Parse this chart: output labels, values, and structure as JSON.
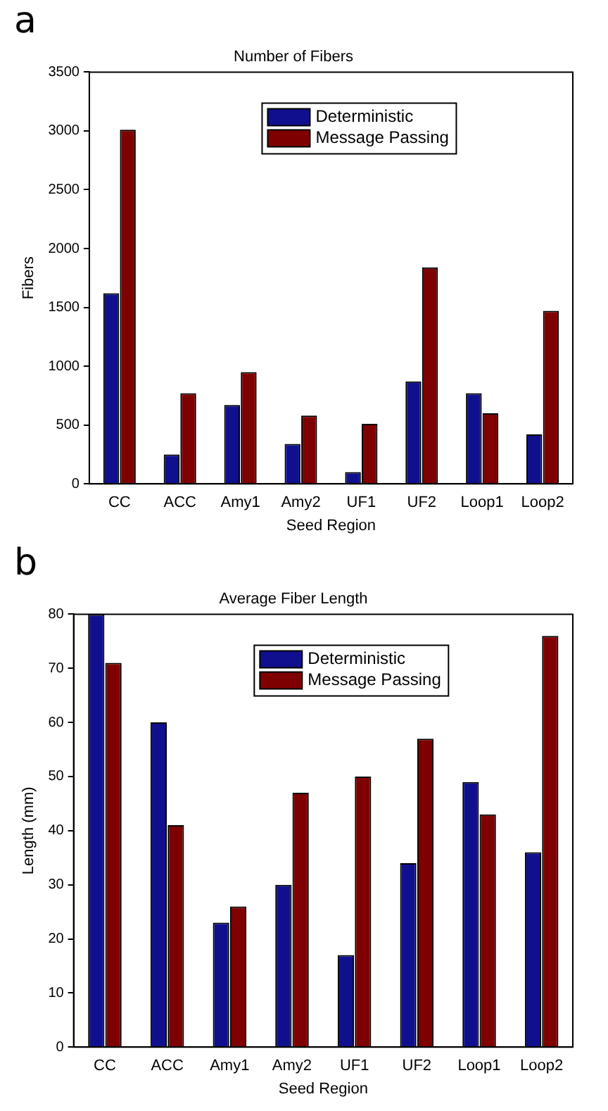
{
  "chart_data": [
    {
      "type": "bar",
      "title": "Number of Fibers",
      "xlabel": "Seed Region",
      "ylabel": "Fibers",
      "annotations": [
        "a"
      ],
      "categories": [
        "CC",
        "ACC",
        "Amy1",
        "Amy2",
        "UF1",
        "UF2",
        "Loop1",
        "Loop2"
      ],
      "series": [
        {
          "name": "Deterministic",
          "color": "#10108f",
          "values": [
            1620,
            250,
            670,
            340,
            100,
            870,
            770,
            420
          ]
        },
        {
          "name": "Message Passing",
          "color": "#7f0000",
          "values": [
            3010,
            770,
            950,
            580,
            510,
            1840,
            600,
            1470
          ]
        }
      ],
      "ylim": [
        0,
        3500
      ],
      "yticks": [
        0,
        500,
        1000,
        1500,
        2000,
        2500,
        3000,
        3500
      ],
      "grid": false,
      "legend": "top"
    },
    {
      "type": "bar",
      "title": "Average Fiber Length",
      "xlabel": "Seed Region",
      "ylabel": "Length (mm)",
      "annotations": [
        "b"
      ],
      "categories": [
        "CC",
        "ACC",
        "Amy1",
        "Amy2",
        "UF1",
        "UF2",
        "Loop1",
        "Loop2"
      ],
      "series": [
        {
          "name": "Deterministic",
          "color": "#10108f",
          "values": [
            80,
            60,
            23,
            30,
            17,
            34,
            49,
            36
          ]
        },
        {
          "name": "Message Passing",
          "color": "#7f0000",
          "values": [
            71,
            41,
            26,
            47,
            50,
            57,
            43,
            76
          ]
        }
      ],
      "ylim": [
        0,
        80
      ],
      "yticks": [
        0,
        10,
        20,
        30,
        40,
        50,
        60,
        70,
        80
      ],
      "grid": false,
      "legend": "top"
    }
  ]
}
